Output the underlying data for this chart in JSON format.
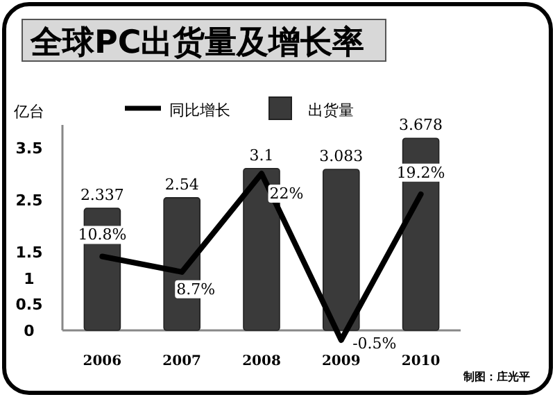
{
  "chart_data": {
    "type": "bar",
    "title": "全球PC出货量及增长率",
    "ylabel": "亿台",
    "categories": [
      "2006",
      "2007",
      "2008",
      "2009",
      "2010"
    ],
    "series": [
      {
        "name": "同比增长",
        "type": "line",
        "axis": "y2",
        "color": "#000000",
        "values": [
          10.8,
          8.7,
          22,
          -0.5,
          19.2
        ],
        "value_labels": [
          "10.8%",
          "8.7%",
          "22%",
          "-0.5%",
          "19.2%"
        ]
      },
      {
        "name": "出货量",
        "color": "#3a3a3a",
        "values": [
          2.337,
          2.54,
          3.1,
          3.083,
          3.678
        ],
        "data_labels": true
      }
    ],
    "ylim": [
      0,
      3.8
    ],
    "yticks": [
      0,
      0.5,
      1,
      1.5,
      2.5,
      3.5
    ],
    "legend": "top",
    "grid": false,
    "marker": "none",
    "annotations": [
      "制图：庄光平"
    ]
  }
}
